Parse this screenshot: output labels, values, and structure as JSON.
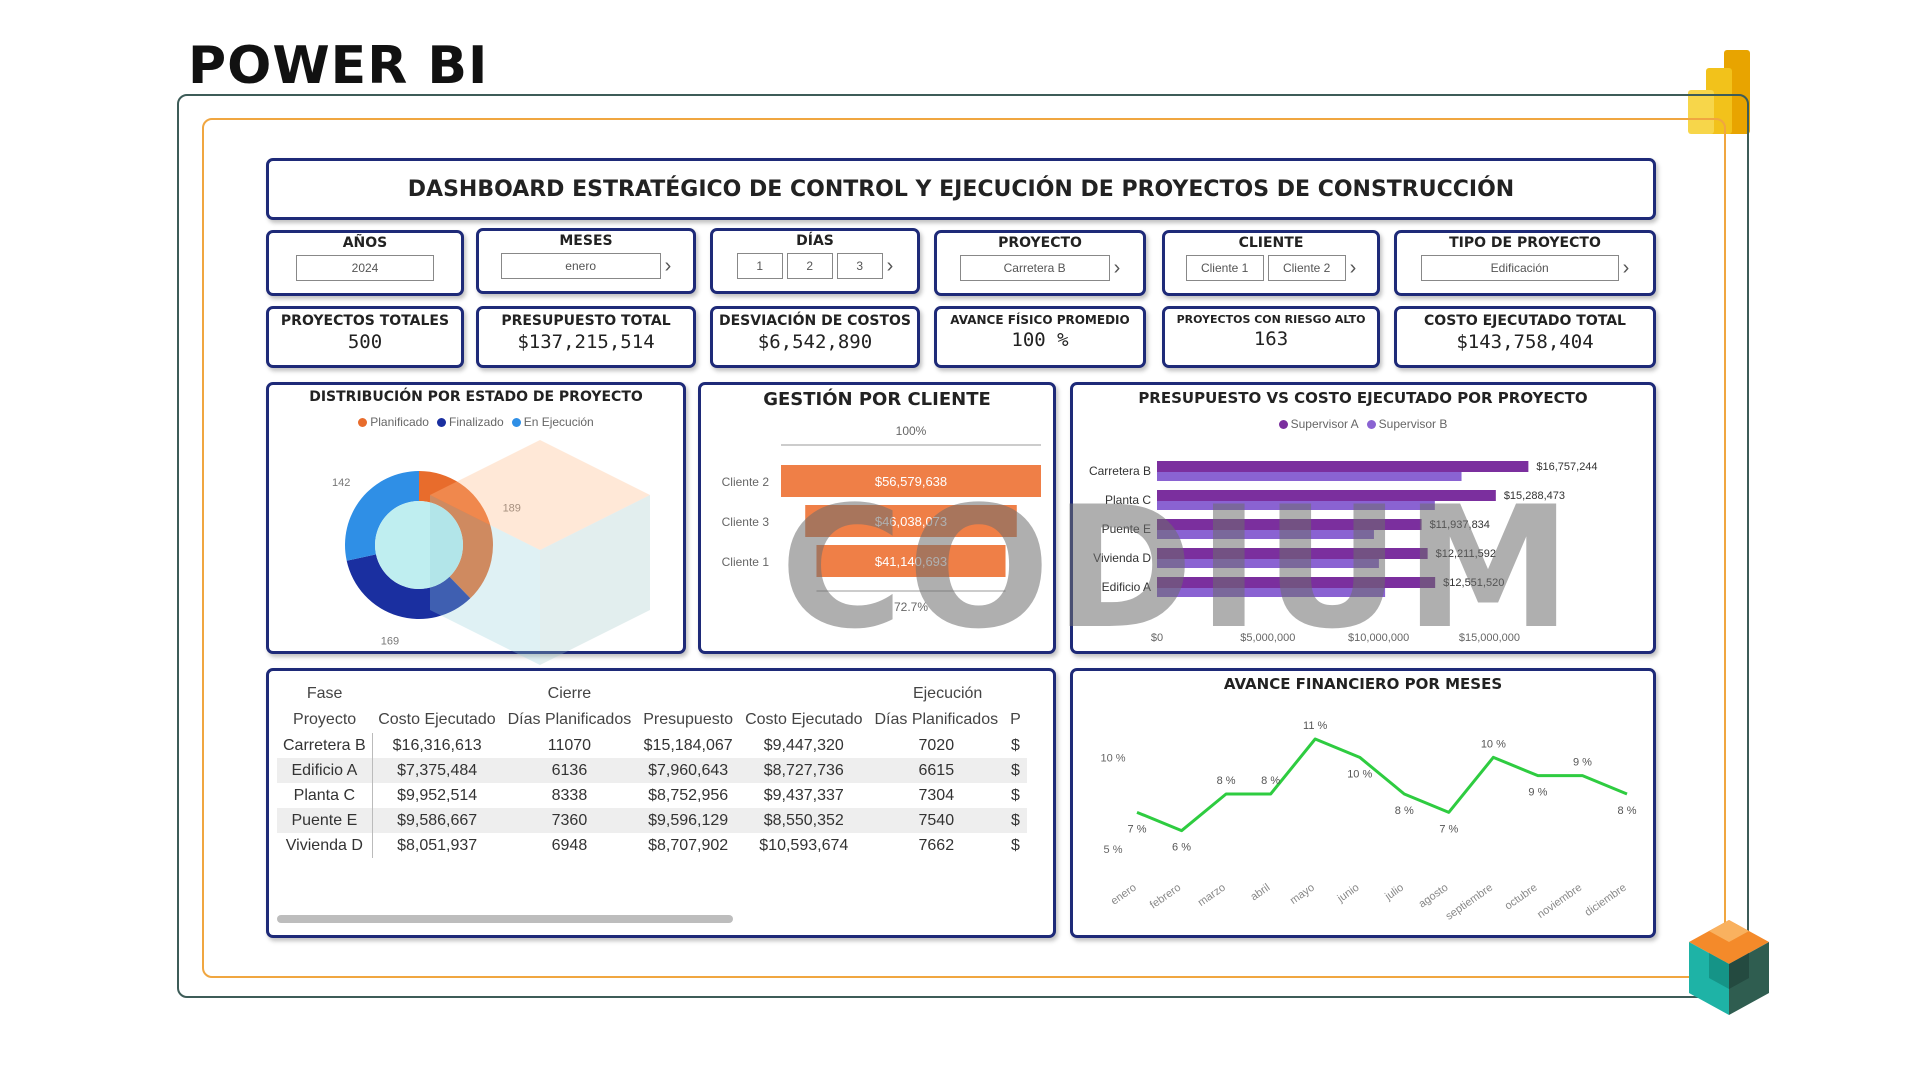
{
  "heading": "POWER BI",
  "banner_title": "DASHBOARD ESTRATÉGICO DE CONTROL Y EJECUCIÓN DE PROYECTOS DE CONSTRUCCIÓN",
  "watermark": "CODIUM",
  "slicers": {
    "anios": {
      "title": "AÑOS",
      "value": "2024"
    },
    "meses": {
      "title": "MESES",
      "value": "enero"
    },
    "dias": {
      "title": "DÍAS",
      "values": [
        "1",
        "2",
        "3"
      ]
    },
    "proyecto": {
      "title": "PROYECTO",
      "value": "Carretera B"
    },
    "cliente": {
      "title": "CLIENTE",
      "values": [
        "Cliente 1",
        "Cliente 2"
      ]
    },
    "tipo": {
      "title": "TIPO DE PROYECTO",
      "value": "Edificación"
    }
  },
  "kpis": {
    "proyectos_totales": {
      "label": "PROYECTOS TOTALES",
      "value": "500"
    },
    "presupuesto_total": {
      "label": "PRESUPUESTO TOTAL",
      "value": "$137,215,514"
    },
    "desviacion_costos": {
      "label": "DESVIACIÓN DE COSTOS",
      "value": "$6,542,890"
    },
    "avance_fisico": {
      "label": "AVANCE FÍSICO PROMEDIO",
      "value": "100 %"
    },
    "riesgo_alto": {
      "label": "PROYECTOS CON RIESGO ALTO",
      "value": "163"
    },
    "costo_ejecutado": {
      "label": "COSTO EJECUTADO TOTAL",
      "value": "$143,758,404"
    }
  },
  "donut": {
    "title": "DISTRIBUCIÓN POR ESTADO DE PROYECTO",
    "legend": [
      "Planificado",
      "Finalizado",
      "En Ejecución"
    ],
    "colors": [
      "#e86c2c",
      "#1a2fa0",
      "#2f8fe6"
    ],
    "values": [
      189,
      169,
      142
    ],
    "labels": [
      "189",
      "169",
      "142"
    ]
  },
  "funnel": {
    "title": "GESTIÓN POR CLIENTE",
    "top_pct": "100%",
    "bottom_pct": "72.7%",
    "color": "#ef7f47",
    "categories": [
      "Cliente 2",
      "Cliente 3",
      "Cliente 1"
    ],
    "values": [
      56579638,
      46038073,
      41140693
    ],
    "value_labels": [
      "$56,579,638",
      "$46,038,073",
      "$41,140,693"
    ]
  },
  "bar_chart": {
    "title": "PRESUPUESTO VS COSTO EJECUTADO POR PROYECTO",
    "legend": [
      "Supervisor A",
      "Supervisor B"
    ],
    "colors": [
      "#7b2f9e",
      "#8a63d2"
    ],
    "categories": [
      "Carretera B",
      "Planta C",
      "Puente E",
      "Vivienda D",
      "Edificio A"
    ],
    "values": [
      16757244,
      15288473,
      11937834,
      12211592,
      12551520
    ],
    "value_labels": [
      "$16,757,244",
      "$15,288,473",
      "$11,937,834",
      "$12,211,592",
      "$12,551,520"
    ],
    "x_ticks": [
      "$0",
      "$5,000,000",
      "$10,000,000",
      "$15,000,000"
    ],
    "xlim": [
      0,
      18500000
    ]
  },
  "table": {
    "group_headers": [
      "Fase",
      "Cierre",
      "Ejecución"
    ],
    "columns": [
      "Proyecto",
      "Costo Ejecutado",
      "Días Planificados",
      "Presupuesto",
      "Costo Ejecutado",
      "Días Planificados",
      "P"
    ],
    "rows": [
      [
        "Carretera B",
        "$16,316,613",
        "11070",
        "$15,184,067",
        "$9,447,320",
        "7020",
        "$"
      ],
      [
        "Edificio A",
        "$7,375,484",
        "6136",
        "$7,960,643",
        "$8,727,736",
        "6615",
        "$"
      ],
      [
        "Planta C",
        "$9,952,514",
        "8338",
        "$8,752,956",
        "$9,437,337",
        "7304",
        "$"
      ],
      [
        "Puente E",
        "$9,586,667",
        "7360",
        "$9,596,129",
        "$8,550,352",
        "7540",
        "$"
      ],
      [
        "Vivienda D",
        "$8,051,937",
        "6948",
        "$8,707,902",
        "$10,593,674",
        "7662",
        "$"
      ]
    ]
  },
  "chart_data": {
    "type": "line",
    "title": "AVANCE FINANCIERO POR MESES",
    "categories": [
      "enero",
      "febrero",
      "marzo",
      "abril",
      "mayo",
      "junio",
      "julio",
      "agosto",
      "septiembre",
      "octubre",
      "noviembre",
      "diciembre"
    ],
    "values": [
      7,
      6,
      8,
      8,
      11,
      10,
      8,
      7,
      10,
      9,
      9,
      8
    ],
    "point_labels": [
      "7 %",
      "6 %",
      "8 %",
      "8 %",
      "11 %",
      "10 %",
      "8 %",
      "7 %",
      "10 %",
      "9 %",
      "9 %",
      "8 %"
    ],
    "y_ticks": [
      "5 %",
      "10 %"
    ],
    "ylim": [
      5,
      11
    ],
    "color": "#2ecc40"
  }
}
